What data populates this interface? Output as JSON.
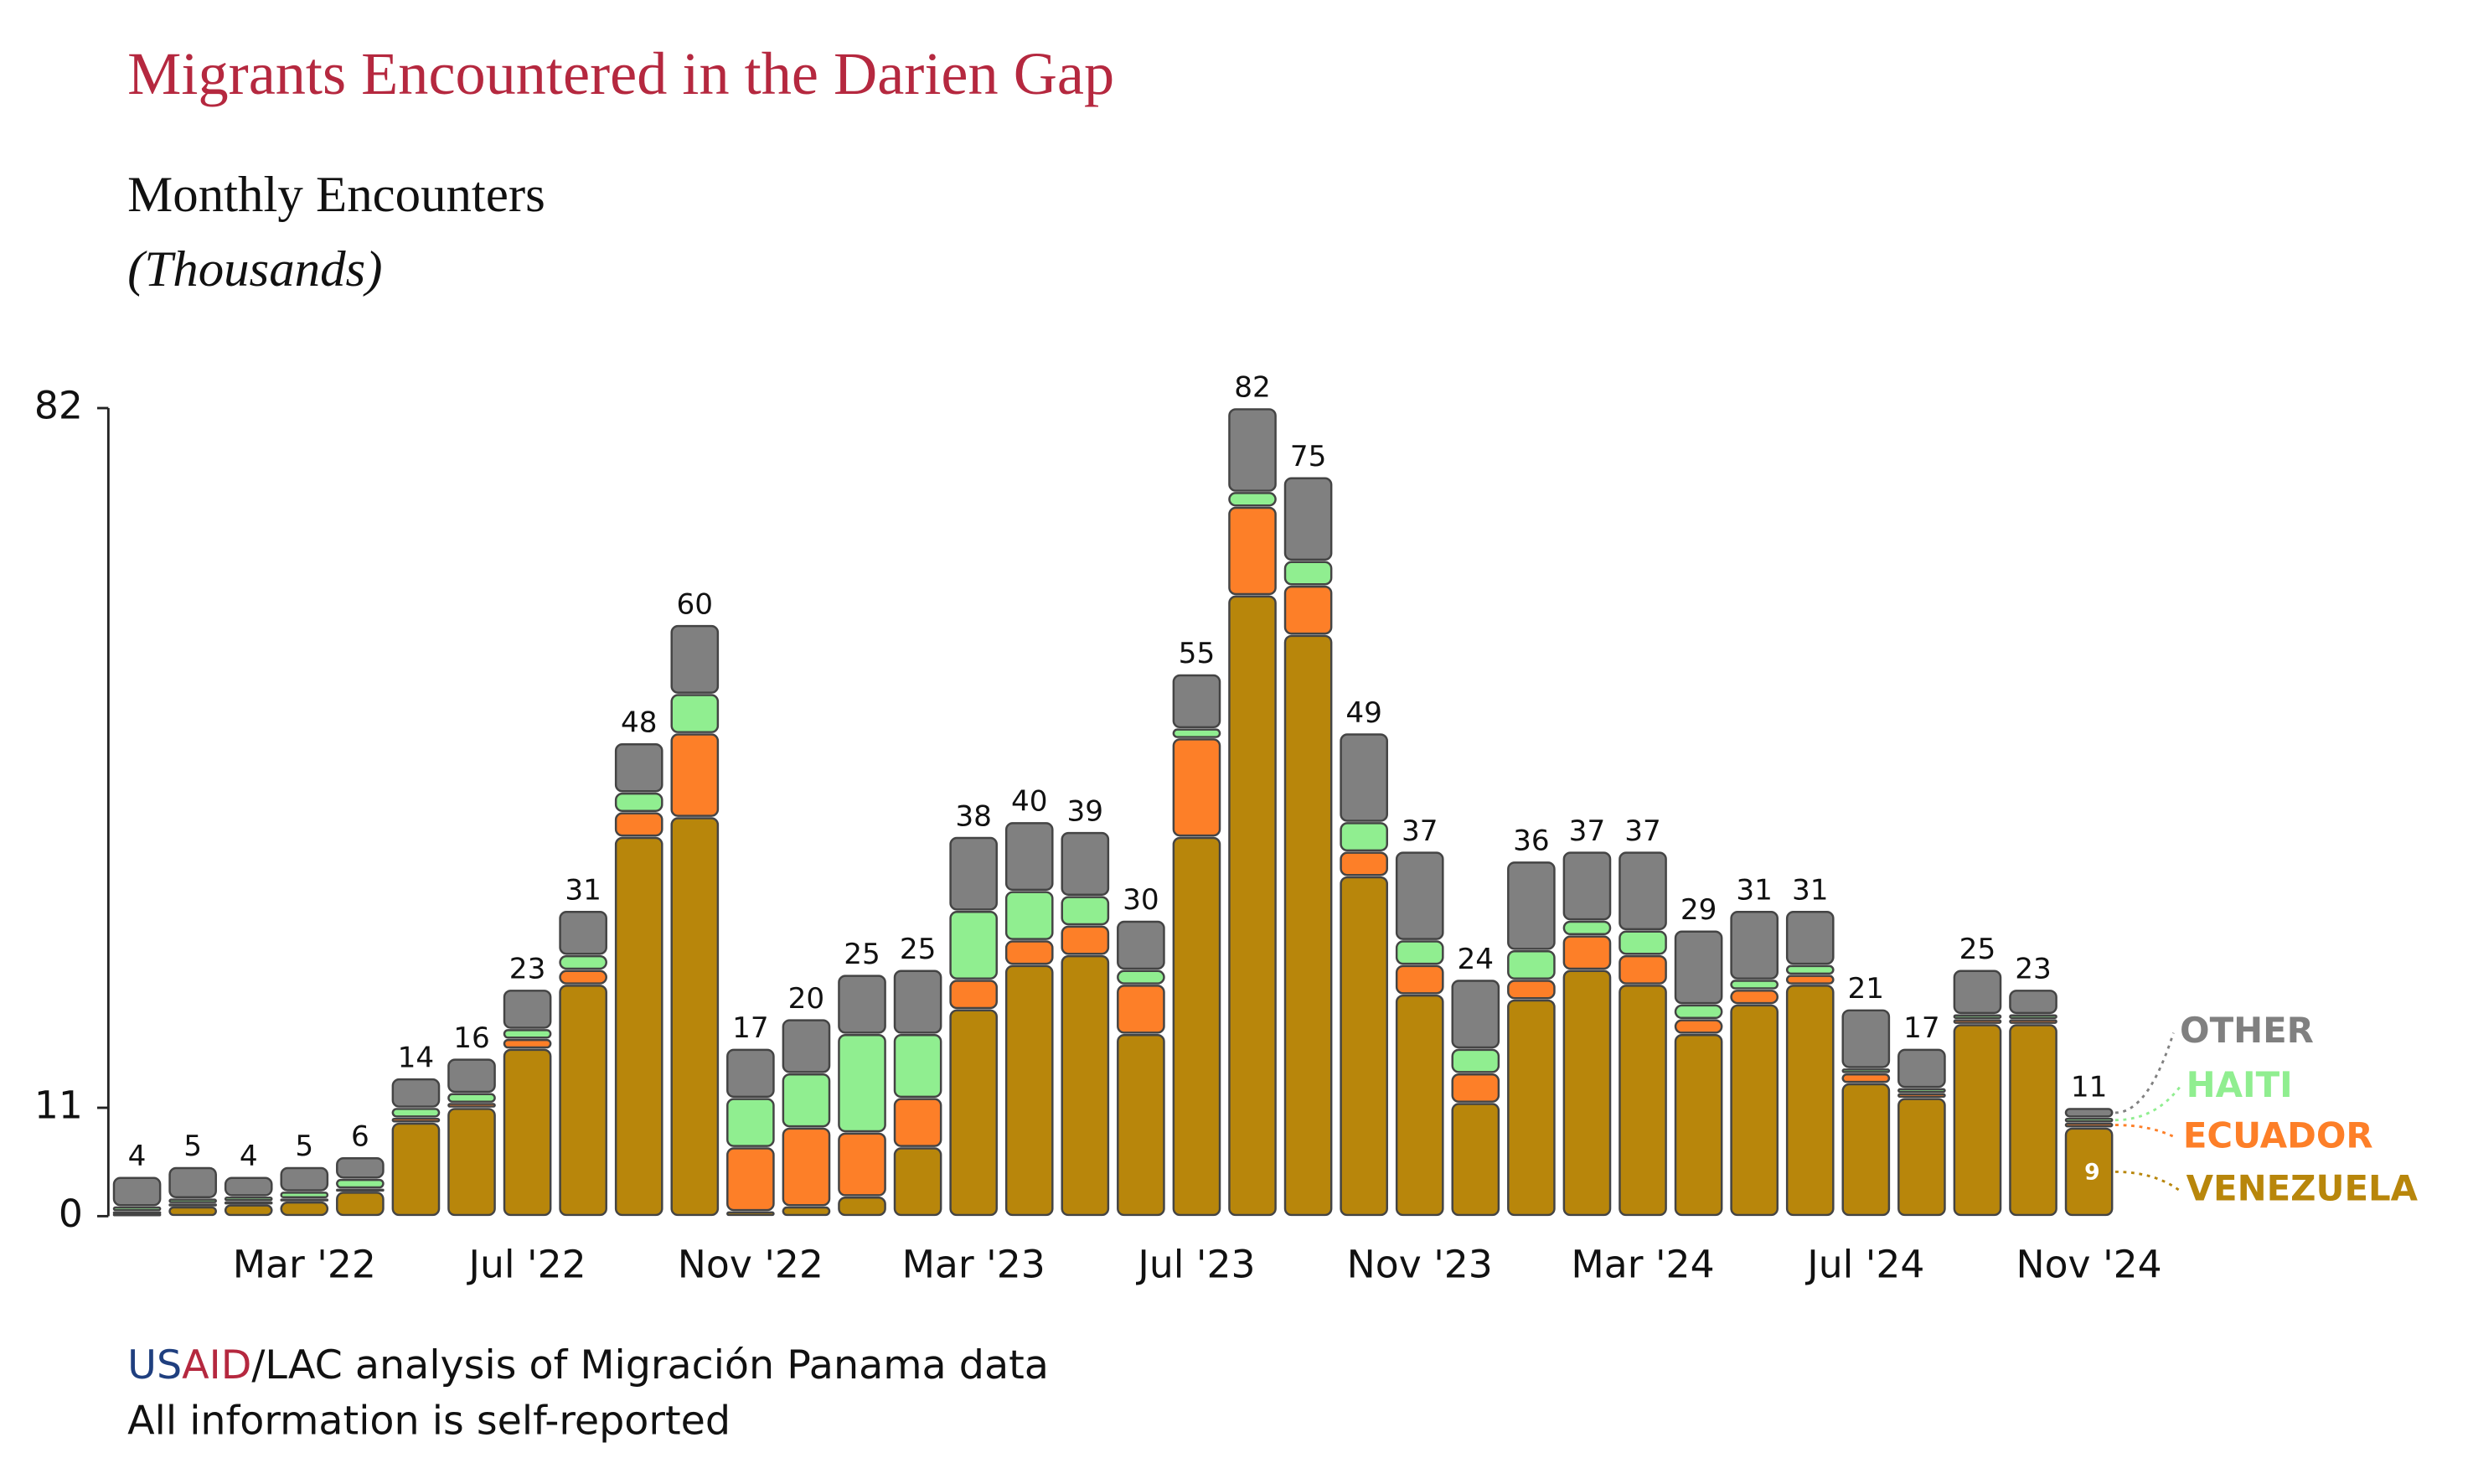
{
  "chart_data": {
    "type": "stacked_bar",
    "title": "Migrants Encountered in the Darien Gap",
    "subtitle": "Monthly Encounters",
    "y_label": "(Thousands)",
    "categories": [
      null,
      null,
      null,
      "Mar '22",
      null,
      null,
      null,
      "Jul '22",
      null,
      null,
      null,
      "Nov '22",
      null,
      null,
      null,
      "Mar '23",
      null,
      null,
      null,
      "Jul '23",
      null,
      null,
      null,
      "Nov '23",
      null,
      null,
      null,
      "Mar '24",
      null,
      null,
      null,
      "Jul '24",
      null,
      null,
      null,
      "Nov '24"
    ],
    "series": [
      {
        "name": "VENEZUELA",
        "color": "#b8860b",
        "values": [
          0.3,
          1,
          1.2,
          1.5,
          2.5,
          9.5,
          11,
          17,
          23.5,
          38.5,
          40.5,
          0.5,
          1,
          2,
          7,
          21,
          25.5,
          26.5,
          18.5,
          38.5,
          63,
          59,
          34.5,
          22.5,
          11.5,
          22,
          25,
          23.5,
          18.5,
          21.5,
          23.5,
          13.5,
          12,
          19.5,
          19.5,
          9
        ]
      },
      {
        "name": "ECUADOR",
        "color": "#fd7f28",
        "values": [
          0.2,
          0.3,
          0.3,
          0.3,
          0.3,
          0.5,
          0.5,
          1,
          1.5,
          2.5,
          8.5,
          6.5,
          8,
          6.5,
          5,
          3,
          2.5,
          3,
          5,
          10,
          9,
          5,
          2.5,
          3,
          3,
          2,
          3.5,
          3,
          1.5,
          1.5,
          1,
          1,
          0.5,
          0.5,
          0.5,
          0.5
        ]
      },
      {
        "name": "HAITI",
        "color": "#90ee90",
        "values": [
          0.5,
          0.5,
          0.5,
          0.7,
          1,
          1,
          1,
          1,
          1.5,
          2,
          4,
          5,
          5.5,
          10,
          6.5,
          7,
          5,
          3,
          1.5,
          1,
          1.5,
          2.5,
          3,
          2.5,
          2.5,
          3,
          1.5,
          2.5,
          1.5,
          1,
          1,
          0.5,
          0.5,
          0.5,
          0.5,
          0.5
        ]
      },
      {
        "name": "OTHER",
        "color": "#808080",
        "values": [
          3,
          3.2,
          2,
          2.5,
          2.2,
          3,
          3.5,
          4,
          4.5,
          5,
          7,
          5,
          5.5,
          6,
          6.5,
          7.5,
          7,
          6.5,
          5,
          5.5,
          8.5,
          8.5,
          9,
          9,
          7,
          9,
          7,
          8,
          7.5,
          7,
          5.5,
          6,
          4,
          4.5,
          2.5,
          1
        ]
      }
    ],
    "totals": [
      4,
      5,
      4,
      5,
      6,
      14,
      16,
      23,
      31,
      48,
      60,
      17,
      20,
      25,
      25,
      38,
      40,
      39,
      30,
      55,
      82,
      75,
      49,
      37,
      24,
      36,
      37,
      37,
      29,
      31,
      31,
      21,
      17,
      25,
      23,
      11
    ],
    "ylim": [
      0,
      82
    ],
    "yticks": [
      0,
      11,
      82
    ],
    "source_parts": [
      "US",
      "AID",
      "/LAC analysis of Migración Panama data"
    ],
    "note": "All information is self-reported"
  }
}
